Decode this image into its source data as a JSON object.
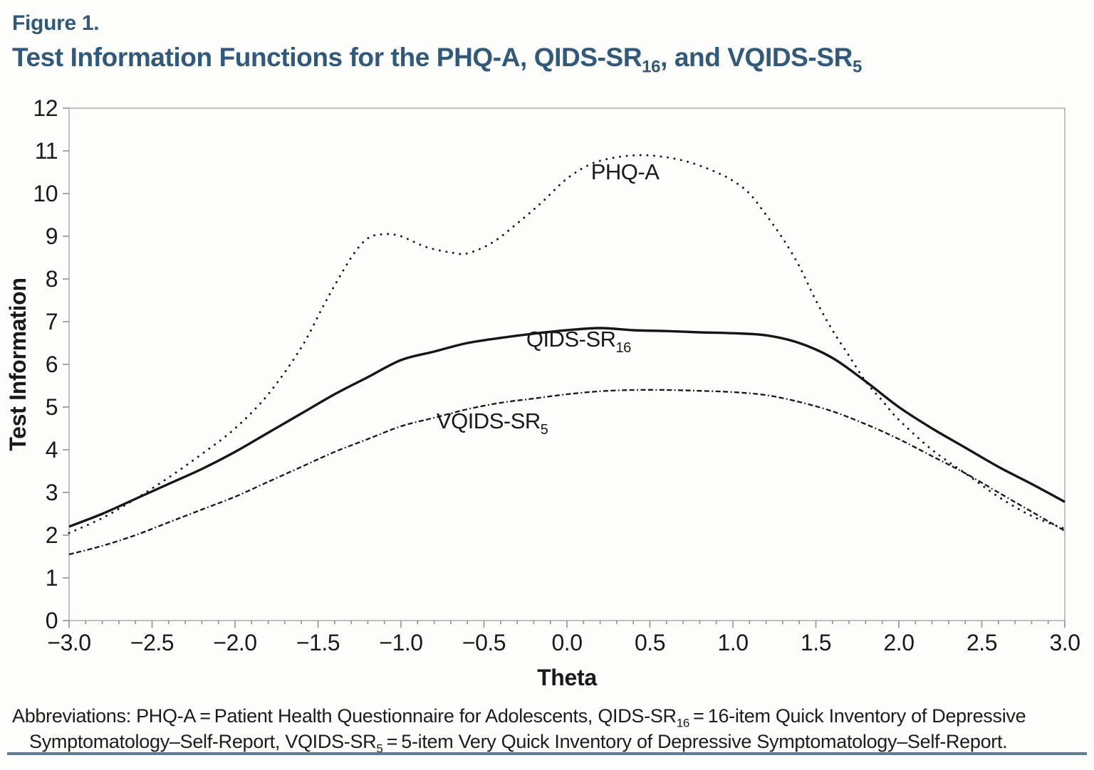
{
  "figure": {
    "label": "Figure 1."
  },
  "title": {
    "segments": [
      {
        "t": "Test Information Functions for the PHQ-A, QIDS-SR"
      },
      {
        "t": "16",
        "sub": true
      },
      {
        "t": ", and VQIDS-SR"
      },
      {
        "t": "5",
        "sub": true
      }
    ]
  },
  "chart_data": {
    "type": "line",
    "title": "Test Information Functions for the PHQ-A, QIDS-SR16, and VQIDS-SR5",
    "xlabel": "Theta",
    "ylabel": "Test Information",
    "xlim": [
      -3,
      3
    ],
    "ylim": [
      0,
      12
    ],
    "grid": false,
    "legend": "inline-curve-labels",
    "x_major_ticks": [
      -3.0,
      -2.5,
      -2.0,
      -1.5,
      -1.0,
      -0.5,
      0.0,
      0.5,
      1.0,
      1.5,
      2.0,
      2.5,
      3.0
    ],
    "x_tick_labels": [
      "−3.0",
      "−2.5",
      "−2.0",
      "−1.5",
      "−1.0",
      "−0.5",
      "0.0",
      "0.5",
      "1.0",
      "1.5",
      "2.0",
      "2.5",
      "3.0"
    ],
    "x_minor_step": 0.1,
    "y_major_ticks": [
      0,
      1,
      2,
      3,
      4,
      5,
      6,
      7,
      8,
      9,
      10,
      11,
      12
    ],
    "y_tick_labels": [
      "0",
      "1",
      "2",
      "3",
      "4",
      "5",
      "6",
      "7",
      "8",
      "9",
      "10",
      "11",
      "12"
    ],
    "series": [
      {
        "name": "PHQ-A",
        "style": "dotted",
        "label": {
          "main": "PHQ-A",
          "sub": "",
          "theta": 0.35,
          "info": 10.33
        },
        "points": [
          [
            -3.0,
            2.05
          ],
          [
            -2.8,
            2.4
          ],
          [
            -2.6,
            2.85
          ],
          [
            -2.4,
            3.35
          ],
          [
            -2.2,
            3.9
          ],
          [
            -2.0,
            4.5
          ],
          [
            -1.8,
            5.3
          ],
          [
            -1.6,
            6.4
          ],
          [
            -1.45,
            7.5
          ],
          [
            -1.3,
            8.5
          ],
          [
            -1.2,
            8.95
          ],
          [
            -1.1,
            9.05
          ],
          [
            -1.0,
            9.0
          ],
          [
            -0.85,
            8.75
          ],
          [
            -0.7,
            8.62
          ],
          [
            -0.6,
            8.6
          ],
          [
            -0.45,
            8.85
          ],
          [
            -0.3,
            9.3
          ],
          [
            -0.15,
            9.8
          ],
          [
            0.0,
            10.35
          ],
          [
            0.15,
            10.7
          ],
          [
            0.3,
            10.85
          ],
          [
            0.45,
            10.9
          ],
          [
            0.6,
            10.85
          ],
          [
            0.75,
            10.72
          ],
          [
            0.9,
            10.5
          ],
          [
            1.0,
            10.3
          ],
          [
            1.1,
            10.0
          ],
          [
            1.2,
            9.5
          ],
          [
            1.3,
            8.95
          ],
          [
            1.4,
            8.3
          ],
          [
            1.5,
            7.5
          ],
          [
            1.6,
            6.8
          ],
          [
            1.7,
            6.2
          ],
          [
            1.8,
            5.6
          ],
          [
            1.9,
            5.15
          ],
          [
            2.0,
            4.7
          ],
          [
            2.2,
            4.0
          ],
          [
            2.4,
            3.45
          ],
          [
            2.6,
            2.9
          ],
          [
            2.8,
            2.45
          ],
          [
            3.0,
            2.15
          ]
        ]
      },
      {
        "name": "QIDS-SR16",
        "style": "solid",
        "label": {
          "main": "QIDS-SR",
          "sub": "16",
          "theta": 0.07,
          "info": 6.42
        },
        "points": [
          [
            -3.0,
            2.2
          ],
          [
            -2.8,
            2.5
          ],
          [
            -2.6,
            2.85
          ],
          [
            -2.4,
            3.2
          ],
          [
            -2.2,
            3.55
          ],
          [
            -2.0,
            3.95
          ],
          [
            -1.8,
            4.4
          ],
          [
            -1.6,
            4.85
          ],
          [
            -1.4,
            5.3
          ],
          [
            -1.2,
            5.7
          ],
          [
            -1.0,
            6.1
          ],
          [
            -0.8,
            6.3
          ],
          [
            -0.6,
            6.5
          ],
          [
            -0.4,
            6.62
          ],
          [
            -0.2,
            6.72
          ],
          [
            0.0,
            6.8
          ],
          [
            0.2,
            6.85
          ],
          [
            0.4,
            6.8
          ],
          [
            0.6,
            6.78
          ],
          [
            0.8,
            6.75
          ],
          [
            1.0,
            6.73
          ],
          [
            1.2,
            6.68
          ],
          [
            1.4,
            6.5
          ],
          [
            1.6,
            6.15
          ],
          [
            1.8,
            5.6
          ],
          [
            2.0,
            5.0
          ],
          [
            2.2,
            4.5
          ],
          [
            2.4,
            4.05
          ],
          [
            2.6,
            3.6
          ],
          [
            2.8,
            3.2
          ],
          [
            3.0,
            2.78
          ]
        ]
      },
      {
        "name": "VQIDS-SR5",
        "style": "dash-dot",
        "label": {
          "main": "VQIDS-SR",
          "sub": "5",
          "theta": -0.45,
          "info": 4.5
        },
        "points": [
          [
            -3.0,
            1.55
          ],
          [
            -2.8,
            1.75
          ],
          [
            -2.6,
            2.0
          ],
          [
            -2.4,
            2.3
          ],
          [
            -2.2,
            2.6
          ],
          [
            -2.0,
            2.9
          ],
          [
            -1.8,
            3.25
          ],
          [
            -1.6,
            3.6
          ],
          [
            -1.4,
            3.95
          ],
          [
            -1.2,
            4.25
          ],
          [
            -1.0,
            4.55
          ],
          [
            -0.8,
            4.75
          ],
          [
            -0.6,
            4.95
          ],
          [
            -0.4,
            5.1
          ],
          [
            -0.2,
            5.2
          ],
          [
            0.0,
            5.3
          ],
          [
            0.2,
            5.37
          ],
          [
            0.4,
            5.4
          ],
          [
            0.6,
            5.4
          ],
          [
            0.8,
            5.38
          ],
          [
            1.0,
            5.35
          ],
          [
            1.2,
            5.28
          ],
          [
            1.4,
            5.12
          ],
          [
            1.6,
            4.9
          ],
          [
            1.8,
            4.6
          ],
          [
            2.0,
            4.25
          ],
          [
            2.2,
            3.85
          ],
          [
            2.4,
            3.45
          ],
          [
            2.6,
            3.0
          ],
          [
            2.8,
            2.55
          ],
          [
            3.0,
            2.1
          ]
        ]
      }
    ]
  },
  "footer": {
    "lines": [
      {
        "segments": [
          {
            "t": "Abbreviations: PHQ-A = Patient Health Questionnaire for Adolescents, QIDS-SR"
          },
          {
            "t": "16",
            "sub": true
          },
          {
            "t": " = 16-item Quick Inventory of Depressive"
          }
        ]
      },
      {
        "segments": [
          {
            "t": "Symptomatology–Self-Report, VQIDS-SR"
          },
          {
            "t": "5",
            "sub": true
          },
          {
            "t": " = 5-item Very Quick Inventory of Depressive Symptomatology–Self-Report."
          }
        ]
      }
    ]
  },
  "colors": {
    "title_blue": "#30597b",
    "curve_black": "#161616",
    "frame_gray": "#b3b3b3",
    "bottom_rule": "#5d7b94",
    "background": "#fdfdfb"
  }
}
